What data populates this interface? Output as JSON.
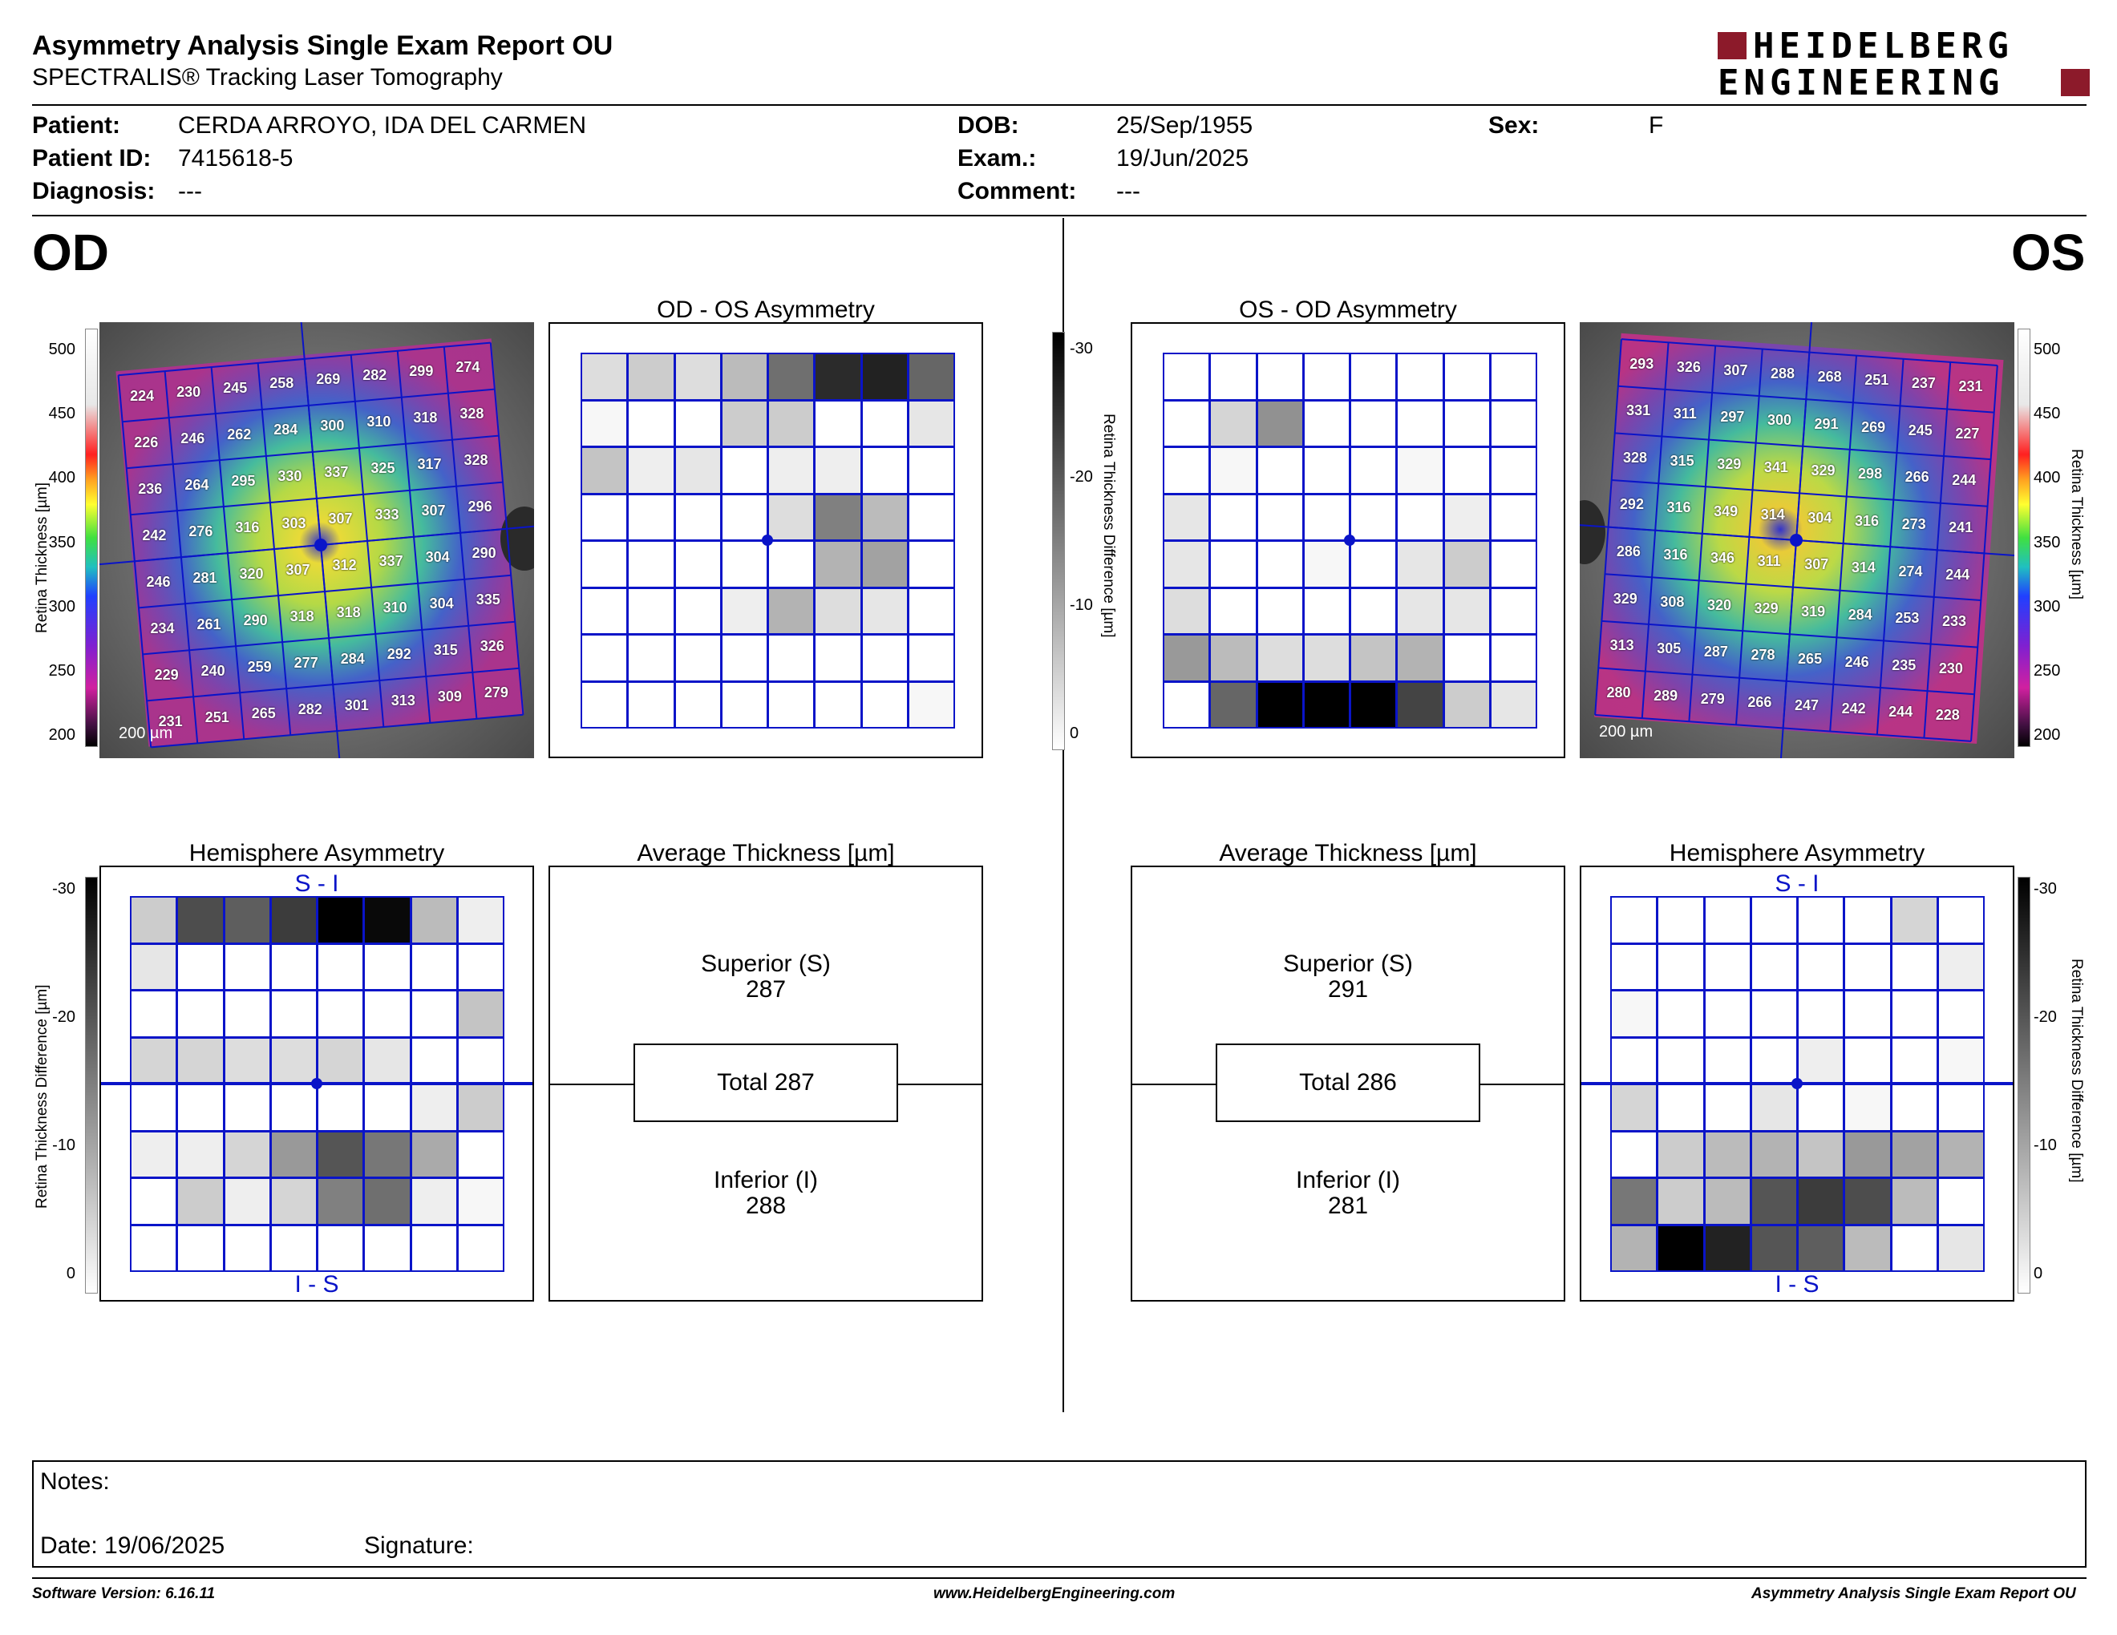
{
  "header": {
    "title": "Asymmetry Analysis Single Exam Report OU",
    "subtitle": "SPECTRALIS® Tracking Laser Tomography",
    "logo_line1": "HEIDELBERG",
    "logo_line2": "ENGINEERING"
  },
  "patient": {
    "patient_label": "Patient:",
    "patient_value": "CERDA ARROYO, IDA DEL CARMEN",
    "id_label": "Patient ID:",
    "id_value": "7415618-5",
    "diagnosis_label": "Diagnosis:",
    "diagnosis_value": "---",
    "dob_label": "DOB:",
    "dob_value": "25/Sep/1955",
    "exam_label": "Exam.:",
    "exam_value": "19/Jun/2025",
    "comment_label": "Comment:",
    "comment_value": "---",
    "sex_label": "Sex:",
    "sex_value": "F"
  },
  "od": {
    "eye_label": "OD",
    "asym_title": "OD - OS Asymmetry",
    "hemi_title": "Hemisphere Asymmetry",
    "avg_title": "Average Thickness [µm]",
    "superior_label": "Superior (S)",
    "superior_value": "287",
    "total_label": "Total 287",
    "inferior_label": "Inferior (I)",
    "inferior_value": "288",
    "si_label": "S - I",
    "is_label": "I - S",
    "scale_label": "200 µm",
    "thickness_grid": [
      [
        224,
        230,
        245,
        258,
        269,
        282,
        299,
        274
      ],
      [
        226,
        246,
        262,
        284,
        300,
        310,
        318,
        328
      ],
      [
        236,
        264,
        295,
        330,
        337,
        325,
        317,
        328
      ],
      [
        242,
        276,
        316,
        303,
        307,
        333,
        307,
        296
      ],
      [
        246,
        281,
        320,
        307,
        312,
        337,
        304,
        290
      ],
      [
        234,
        261,
        290,
        318,
        318,
        310,
        304,
        335
      ],
      [
        229,
        240,
        259,
        277,
        284,
        292,
        315,
        326
      ],
      [
        231,
        251,
        265,
        282,
        301,
        313,
        309,
        279
      ]
    ],
    "asym_grid": [
      [
        4,
        6,
        4,
        8,
        17,
        25,
        26,
        18
      ],
      [
        1,
        0,
        0,
        6,
        6,
        0,
        0,
        3
      ],
      [
        7,
        2,
        3,
        0,
        2,
        2,
        0,
        0
      ],
      [
        0,
        0,
        0,
        0,
        4,
        15,
        8,
        0
      ],
      [
        0,
        0,
        0,
        0,
        0,
        9,
        11,
        0
      ],
      [
        0,
        0,
        0,
        2,
        9,
        4,
        3,
        0
      ],
      [
        0,
        0,
        0,
        0,
        0,
        0,
        0,
        0
      ],
      [
        0,
        0,
        0,
        0,
        0,
        0,
        0,
        1
      ]
    ],
    "hemi_grid": [
      [
        6,
        21,
        19,
        23,
        30,
        29,
        8,
        2
      ],
      [
        3,
        0,
        0,
        0,
        0,
        0,
        0,
        0
      ],
      [
        0,
        0,
        0,
        0,
        0,
        0,
        0,
        7
      ],
      [
        5,
        5,
        4,
        4,
        5,
        3,
        0,
        0
      ],
      [
        0,
        0,
        0,
        0,
        0,
        0,
        2,
        6
      ],
      [
        2,
        2,
        5,
        12,
        20,
        16,
        10,
        0
      ],
      [
        0,
        6,
        2,
        5,
        15,
        17,
        2,
        1
      ],
      [
        0,
        0,
        0,
        0,
        0,
        0,
        0,
        0
      ]
    ]
  },
  "os": {
    "eye_label": "OS",
    "asym_title": "OS - OD Asymmetry",
    "hemi_title": "Hemisphere Asymmetry",
    "avg_title": "Average Thickness [µm]",
    "superior_label": "Superior (S)",
    "superior_value": "291",
    "total_label": "Total 286",
    "inferior_label": "Inferior (I)",
    "inferior_value": "281",
    "si_label": "S - I",
    "is_label": "I - S",
    "scale_label": "200 µm",
    "thickness_grid": [
      [
        293,
        326,
        307,
        288,
        268,
        251,
        237,
        231
      ],
      [
        331,
        311,
        297,
        300,
        291,
        269,
        245,
        227
      ],
      [
        328,
        315,
        329,
        341,
        329,
        298,
        266,
        244
      ],
      [
        292,
        316,
        349,
        314,
        304,
        316,
        273,
        241
      ],
      [
        286,
        316,
        346,
        311,
        307,
        314,
        274,
        244
      ],
      [
        329,
        308,
        320,
        329,
        319,
        284,
        253,
        233
      ],
      [
        313,
        305,
        287,
        278,
        265,
        246,
        235,
        230
      ],
      [
        280,
        289,
        279,
        266,
        247,
        242,
        244,
        228
      ]
    ],
    "asym_grid": [
      [
        0,
        0,
        0,
        0,
        0,
        0,
        0,
        0
      ],
      [
        0,
        5,
        13,
        0,
        0,
        0,
        0,
        0
      ],
      [
        0,
        1,
        0,
        0,
        0,
        1,
        0,
        0
      ],
      [
        3,
        0,
        0,
        0,
        0,
        0,
        2,
        0
      ],
      [
        3,
        0,
        0,
        1,
        0,
        3,
        6,
        0
      ],
      [
        4,
        0,
        0,
        0,
        0,
        3,
        3,
        0
      ],
      [
        12,
        8,
        4,
        4,
        7,
        9,
        0,
        0
      ],
      [
        0,
        18,
        30,
        30,
        30,
        22,
        6,
        3
      ]
    ],
    "hemi_grid": [
      [
        0,
        0,
        0,
        0,
        0,
        0,
        5,
        0
      ],
      [
        0,
        0,
        0,
        0,
        0,
        0,
        0,
        2
      ],
      [
        1,
        0,
        0,
        0,
        0,
        0,
        0,
        0
      ],
      [
        0,
        0,
        0,
        0,
        2,
        0,
        0,
        1
      ],
      [
        5,
        0,
        0,
        3,
        0,
        1,
        0,
        0
      ],
      [
        0,
        6,
        8,
        9,
        7,
        12,
        11,
        9
      ],
      [
        16,
        6,
        8,
        20,
        23,
        21,
        8,
        0
      ],
      [
        9,
        30,
        26,
        20,
        19,
        8,
        0,
        3
      ]
    ]
  },
  "colorbar": {
    "thickness_ticks": [
      "500",
      "450",
      "400",
      "350",
      "300",
      "250",
      "200"
    ],
    "thickness_axis_label": "Retina  Thickness [µm]",
    "diff_ticks": [
      "-30",
      "-20",
      "-10",
      "0"
    ],
    "diff_axis_label": "Retina Thickness Difference [µm]"
  },
  "notes": {
    "notes_label": "Notes:",
    "date_label": "Date: 19/06/2025",
    "signature_label": "Signature:"
  },
  "footer": {
    "left": "Software Version: 6.16.11",
    "center": "www.HeidelbergEngineering.com",
    "right": "Asymmetry Analysis Single Exam Report OU"
  },
  "colors": {
    "grid_blue": "#0a14c8",
    "logo_red": "#8c1a2a"
  }
}
